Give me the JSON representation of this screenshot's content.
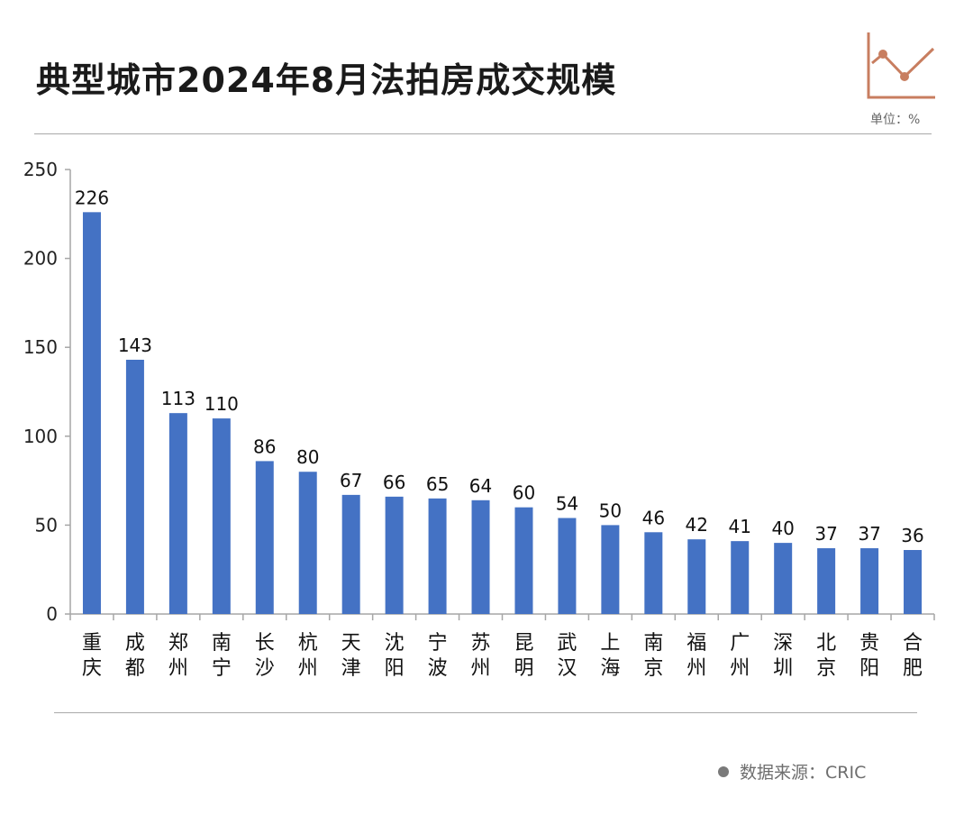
{
  "header": {
    "title": "典型城市2024年8月法拍房成交规模",
    "unit": "单位：%"
  },
  "footer": {
    "source": "数据来源：CRIC"
  },
  "icons": {
    "deco": "line-chart-icon",
    "source_bullet": "bullet-dot-icon"
  },
  "colors": {
    "bar": "#4472C4",
    "icon": "#C87E60",
    "axis": "#A6A6A6"
  },
  "chart_data": {
    "type": "bar",
    "title": "典型城市2024年8月法拍房成交规模",
    "categories": [
      "重庆",
      "成都",
      "郑州",
      "南宁",
      "长沙",
      "杭州",
      "天津",
      "沈阳",
      "宁波",
      "苏州",
      "昆明",
      "武汉",
      "上海",
      "南京",
      "福州",
      "广州",
      "深圳",
      "北京",
      "贵阳",
      "合肥"
    ],
    "values": [
      226,
      143,
      113,
      110,
      86,
      80,
      67,
      66,
      65,
      64,
      60,
      54,
      50,
      46,
      42,
      41,
      40,
      37,
      37,
      36
    ],
    "ylim": [
      0,
      250
    ],
    "yticks": [
      0,
      50,
      100,
      150,
      200,
      250
    ],
    "data_labels": true,
    "grid": false,
    "legend": "none"
  }
}
